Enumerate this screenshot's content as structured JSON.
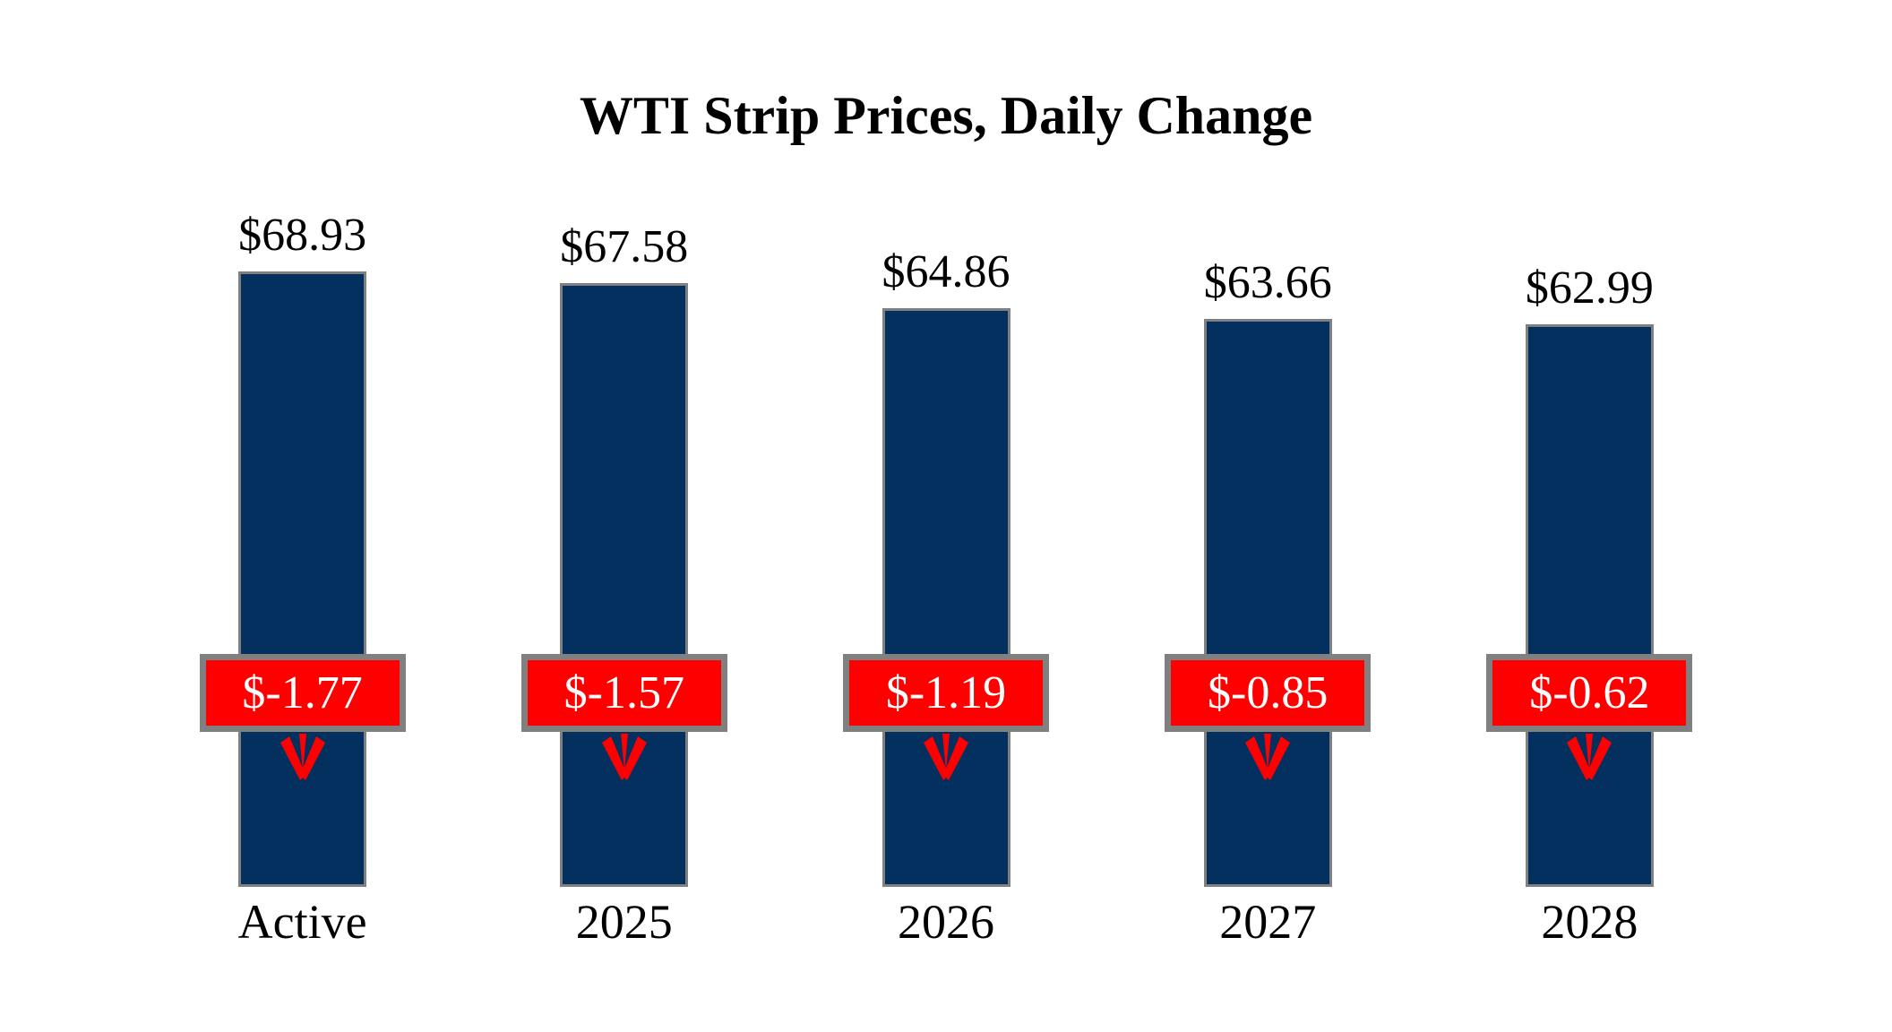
{
  "chart_data": {
    "type": "bar",
    "title": "WTI Strip Prices, Daily Change",
    "categories": [
      "Active",
      "2025",
      "2026",
      "2027",
      "2028"
    ],
    "series": [
      {
        "name": "Strip Price",
        "values": [
          68.93,
          67.58,
          64.86,
          63.66,
          62.99
        ],
        "labels": [
          "$68.93",
          "$67.58",
          "$64.86",
          "$63.66",
          "$62.99"
        ]
      },
      {
        "name": "Daily Change",
        "values": [
          -1.77,
          -1.57,
          -1.19,
          -0.85,
          -0.62
        ],
        "labels": [
          "$-1.77",
          "$-1.57",
          "$-1.19",
          "$-0.85",
          "$-0.62"
        ]
      }
    ],
    "ylim": [
      0,
      68.93
    ],
    "grid": false,
    "axes_hidden": true,
    "legend_position": "none",
    "colors": {
      "bar": "#03305E",
      "bar_border": "#808080",
      "change_badge": "#FF0000",
      "badge_border": "#808080",
      "badge_text": "#FFFFFF",
      "arrow": "#FF0000",
      "text": "#000000",
      "background": "#FFFFFF"
    }
  }
}
